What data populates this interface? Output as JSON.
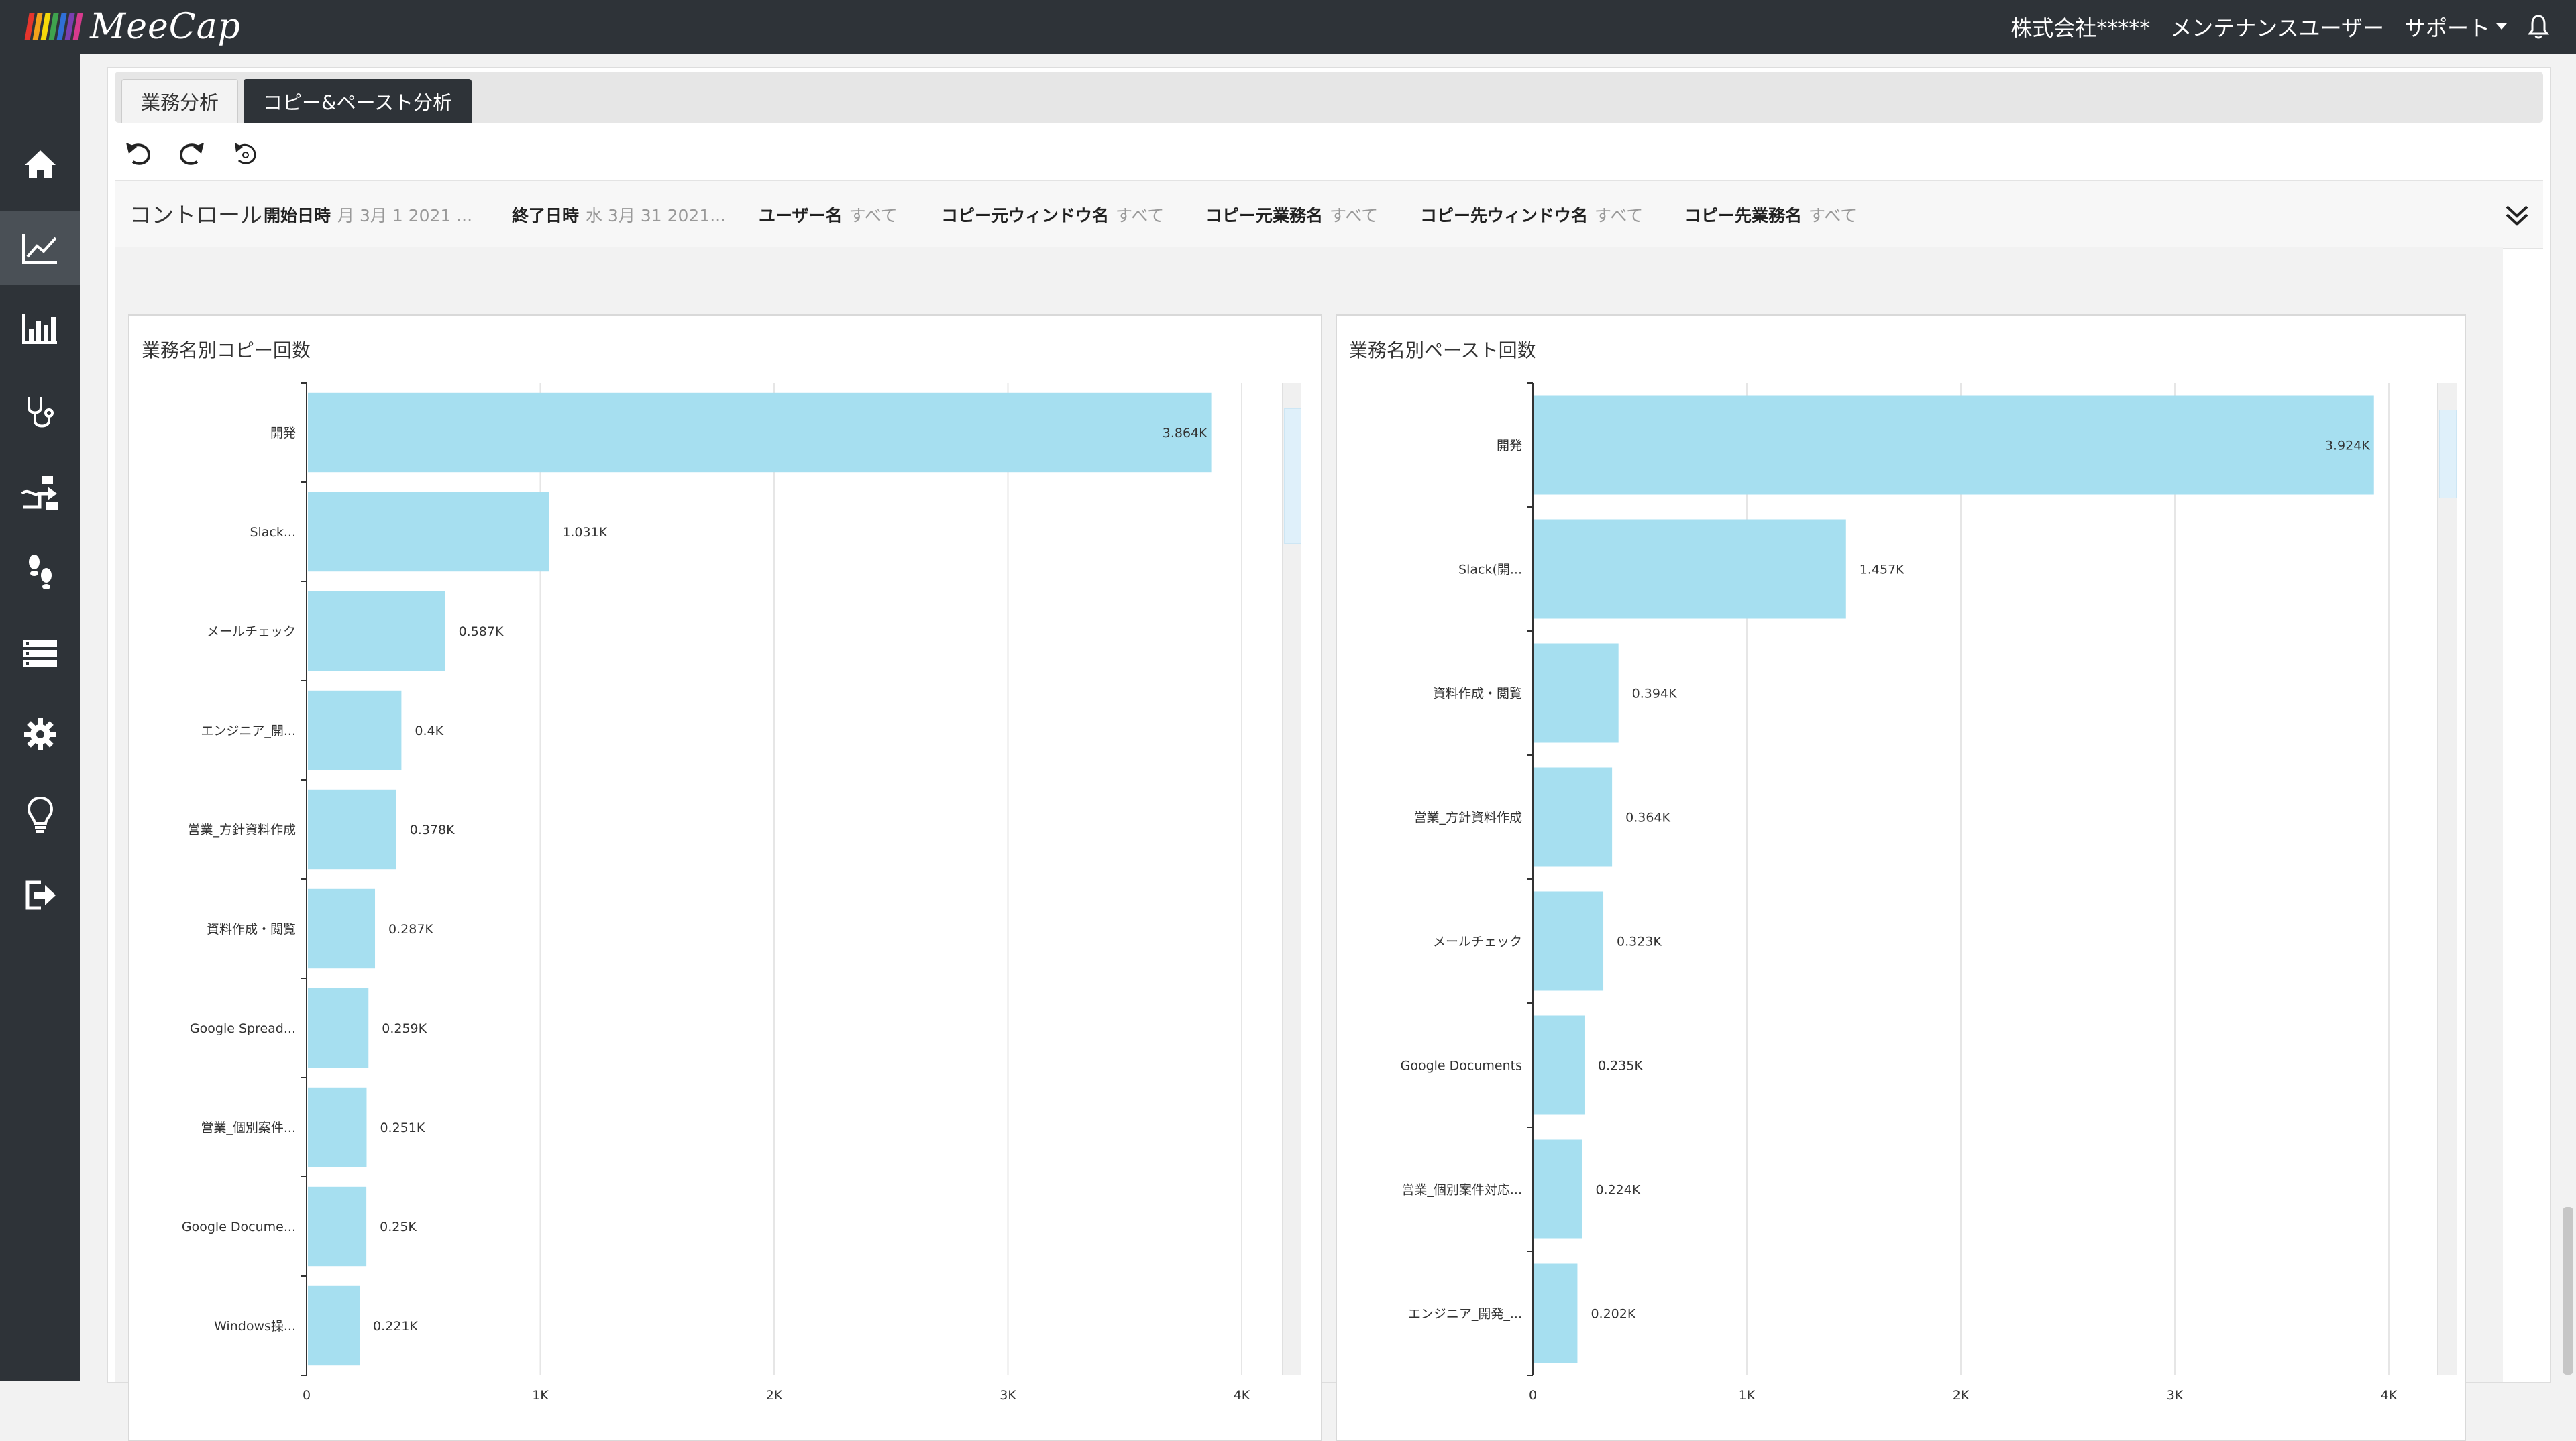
{
  "app": {
    "brand_name": "MeeCap",
    "stripe_colors": [
      "#e5352d",
      "#f3a21b",
      "#f5d90a",
      "#3fa34d",
      "#2f6fd6",
      "#7a3fb0",
      "#d63a8d"
    ]
  },
  "header": {
    "company": "株式会社*****",
    "user": "メンテナンスユーザー",
    "support": "サポート",
    "icons": [
      "caret-down-icon",
      "bell-icon"
    ]
  },
  "sidebar": {
    "items": [
      {
        "name": "home",
        "icon": "home-icon",
        "active": false
      },
      {
        "name": "analysis",
        "icon": "line-chart-icon",
        "active": true
      },
      {
        "name": "report",
        "icon": "bar-chart-icon",
        "active": false
      },
      {
        "name": "diagnosis",
        "icon": "stethoscope-icon",
        "active": false
      },
      {
        "name": "workflow",
        "icon": "flow-icon",
        "active": false
      },
      {
        "name": "steps",
        "icon": "footprints-icon",
        "active": false
      },
      {
        "name": "data",
        "icon": "server-icon",
        "active": false
      },
      {
        "name": "settings",
        "icon": "gear-icon",
        "active": false
      },
      {
        "name": "tips",
        "icon": "lightbulb-icon",
        "active": false
      },
      {
        "name": "logout",
        "icon": "logout-icon",
        "active": false
      }
    ]
  },
  "tabs": [
    {
      "label": "業務分析",
      "active": false
    },
    {
      "label": "コピー&ペースト分析",
      "active": true
    }
  ],
  "toolbar": {
    "buttons": [
      "undo-icon",
      "redo-icon",
      "reset-icon"
    ]
  },
  "controls": {
    "title": "コントロール",
    "filters": [
      {
        "label": "開始日時",
        "value": "月 3月 1 2021 ..."
      },
      {
        "label": "終了日時",
        "value": "水 3月 31 2021..."
      },
      {
        "label": "ユーザー名",
        "value": "すべて"
      },
      {
        "label": "コピー元ウィンドウ名",
        "value": "すべて"
      },
      {
        "label": "コピー元業務名",
        "value": "すべて"
      },
      {
        "label": "コピー先ウィンドウ名",
        "value": "すべて"
      },
      {
        "label": "コピー先業務名",
        "value": "すべて"
      }
    ]
  },
  "chart_data": [
    {
      "type": "bar",
      "orientation": "horizontal",
      "title": "業務名別コピー回数",
      "categories": [
        "開発",
        "Slack...",
        "メールチェック",
        "エンジニア_開...",
        "営業_方針資料作成",
        "資料作成・閲覧",
        "Google Spread...",
        "営業_個別案件...",
        "Google Docume...",
        "Windows操..."
      ],
      "values": [
        3864,
        1031,
        587,
        400,
        378,
        287,
        259,
        251,
        250,
        221
      ],
      "value_labels": [
        "3.864K",
        "1.031K",
        "0.587K",
        "0.4K",
        "0.378K",
        "0.287K",
        "0.259K",
        "0.251K",
        "0.25K",
        "0.221K"
      ],
      "xlim": [
        0,
        4000
      ],
      "xticks": [
        "0",
        "1K",
        "2K",
        "3K",
        "4K"
      ],
      "grid": true,
      "bar_color": "#a6dff0"
    },
    {
      "type": "bar",
      "orientation": "horizontal",
      "title": "業務名別ペースト回数",
      "categories": [
        "開発",
        "Slack(開...",
        "資料作成・閲覧",
        "営業_方針資料作成",
        "メールチェック",
        "Google Documents",
        "営業_個別案件対応...",
        "エンジニア_開発_..."
      ],
      "values": [
        3924,
        1457,
        394,
        364,
        323,
        235,
        224,
        202
      ],
      "value_labels": [
        "3.924K",
        "1.457K",
        "0.394K",
        "0.364K",
        "0.323K",
        "0.235K",
        "0.224K",
        "0.202K"
      ],
      "xlim": [
        0,
        4000
      ],
      "xticks": [
        "0",
        "1K",
        "2K",
        "3K",
        "4K"
      ],
      "grid": true,
      "bar_color": "#a6dff0"
    }
  ]
}
